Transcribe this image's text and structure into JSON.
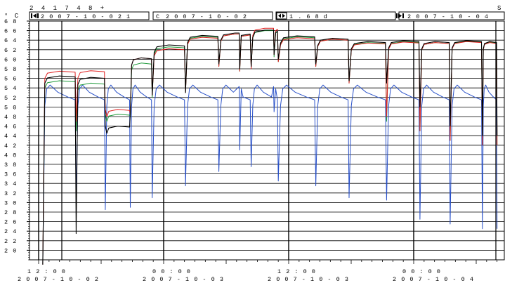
{
  "header": {
    "id_label": "2 4 1 7 4 8 +",
    "corner_right": "S",
    "unit": "° C",
    "start_date": "2 0 0 7 - 1 0 - 0 2   1",
    "cursor_label": "C",
    "cursor_date": "2 0 0 7 - 1 0 - 0 2",
    "span_value": "1 . 6 8   d",
    "end_date": "2 0 0 7 - 1 0 - 0 4",
    "icon_start": "start-marker-icon",
    "icon_span": "span-arrows-icon",
    "icon_end": "end-marker-icon"
  },
  "chart_data": {
    "type": "line",
    "x_range_hours": [
      0,
      52
    ],
    "ylim": [
      18,
      68
    ],
    "y_ticks": [
      {
        "v": 68,
        "label": "6 8"
      },
      {
        "v": 66,
        "label": "6 6"
      },
      {
        "v": 64,
        "label": "6 4"
      },
      {
        "v": 62,
        "label": "6 2"
      },
      {
        "v": 60,
        "label": "6 0"
      },
      {
        "v": 58,
        "label": "5 8"
      },
      {
        "v": 56,
        "label": "5 6"
      },
      {
        "v": 54,
        "label": "5 4"
      },
      {
        "v": 52,
        "label": "5 2"
      },
      {
        "v": 50,
        "label": "5 0"
      },
      {
        "v": 48,
        "label": "4 8"
      },
      {
        "v": 46,
        "label": "4 6"
      },
      {
        "v": 44,
        "label": "4 4"
      },
      {
        "v": 42,
        "label": "4 2"
      },
      {
        "v": 40,
        "label": "4 0"
      },
      {
        "v": 38,
        "label": "3 8"
      },
      {
        "v": 36,
        "label": "3 6"
      },
      {
        "v": 34,
        "label": "3 4"
      },
      {
        "v": 32,
        "label": "3 2"
      },
      {
        "v": 30,
        "label": "3 0"
      },
      {
        "v": 28,
        "label": "2 8"
      },
      {
        "v": 26,
        "label": "2 6"
      },
      {
        "v": 24,
        "label": "2 4"
      },
      {
        "v": 22,
        "label": "2 2"
      },
      {
        "v": 20,
        "label": "2 0"
      }
    ],
    "x_ticks": [
      {
        "h": 0,
        "time": "1 2 : 0 0",
        "date": "2 0 0 7 - 1 0 - 0 2"
      },
      {
        "h": 12,
        "time": "0 0 : 0 0",
        "date": "2 0 0 7 - 1 0 - 0 3"
      },
      {
        "h": 24,
        "time": "1 2 : 0 0",
        "date": "2 0 0 7 - 1 0 - 0 3"
      },
      {
        "h": 36,
        "time": "0 0 : 0 0",
        "date": "2 0 0 7 - 1 0 - 0 4"
      }
    ],
    "grid": true,
    "series": [
      {
        "color": "#000000"
      },
      {
        "color": "#e02020"
      },
      {
        "color": "#1e9a3a"
      },
      {
        "color": "#2850c8"
      }
    ],
    "cycles": [
      {
        "start": 0.4,
        "end": 3.6,
        "plateau": [
          56.5,
          57.5,
          55.5,
          54.3
        ],
        "trough": [
          17.0,
          17.0,
          17.0,
          17.0
        ]
      },
      {
        "start": 3.6,
        "end": 6.4,
        "plateau": [
          56.2,
          57.6,
          55.0,
          54.3
        ],
        "trough": [
          23.5,
          47.0,
          45.0,
          30.5
        ]
      },
      {
        "start": 6.4,
        "end": 8.8,
        "plateau": [
          46.0,
          49.5,
          48.5,
          54.3
        ],
        "trough": [
          46.0,
          49.5,
          48.5,
          28.5
        ]
      },
      {
        "start": 8.8,
        "end": 10.9,
        "plateau": [
          60.3,
          60.3,
          59.2,
          54.3
        ],
        "trough": [
          48.5,
          48.5,
          48.0,
          29.0
        ]
      },
      {
        "start": 10.9,
        "end": 14.1,
        "plateau": [
          63.0,
          62.2,
          62.6,
          54.3
        ],
        "trough": [
          52.5,
          52.5,
          52.0,
          31.0
        ]
      },
      {
        "start": 14.1,
        "end": 17.3,
        "plateau": [
          65.0,
          64.6,
          64.8,
          54.3
        ],
        "trough": [
          53.0,
          53.0,
          53.0,
          33.5
        ]
      },
      {
        "start": 17.3,
        "end": 20.4,
        "plateau": [
          65.5,
          65.3,
          65.3,
          54.3
        ],
        "trough": [
          59.0,
          58.5,
          58.5,
          36.5
        ]
      },
      {
        "start": 20.4,
        "end": 23.0,
        "plateau": [
          66.1,
          66.5,
          66.0,
          54.3
        ],
        "trough": [
          58.5,
          58.0,
          58.5,
          37.5
        ]
      },
      {
        "start": 23.0,
        "end": 26.6,
        "plateau": [
          64.9,
          64.5,
          64.7,
          54.3
        ],
        "trough": [
          60.0,
          59.5,
          59.5,
          34.5
        ]
      },
      {
        "start": 26.6,
        "end": 29.8,
        "plateau": [
          64.4,
          64.2,
          64.2,
          54.3
        ],
        "trough": [
          59.0,
          58.5,
          58.5,
          33.5
        ]
      },
      {
        "start": 29.8,
        "end": 33.4,
        "plateau": [
          63.7,
          63.4,
          63.5,
          54.3
        ],
        "trough": [
          55.5,
          55.0,
          55.0,
          31.0
        ]
      },
      {
        "start": 33.4,
        "end": 36.6,
        "plateau": [
          63.9,
          63.6,
          63.7,
          54.3
        ],
        "trough": [
          55.0,
          48.0,
          47.0,
          30.5
        ]
      },
      {
        "start": 36.6,
        "end": 39.5,
        "plateau": [
          63.7,
          63.5,
          63.5,
          54.3
        ],
        "trough": [
          50.0,
          45.0,
          45.0,
          26.5
        ]
      },
      {
        "start": 39.5,
        "end": 42.6,
        "plateau": [
          63.9,
          63.7,
          63.8,
          54.3
        ],
        "trough": [
          46.0,
          43.0,
          43.0,
          25.5
        ]
      },
      {
        "start": 42.6,
        "end": 44.0,
        "plateau": [
          63.7,
          63.5,
          63.6,
          54.3
        ],
        "trough": [
          44.0,
          42.0,
          42.0,
          24.5
        ]
      }
    ],
    "extra_dips": [
      {
        "h": 19.3,
        "depth": [
          58.0,
          57.5,
          57.5,
          41.0
        ]
      },
      {
        "h": 22.6,
        "depth": [
          61.0,
          61.0,
          60.5,
          49.0
        ]
      }
    ]
  }
}
